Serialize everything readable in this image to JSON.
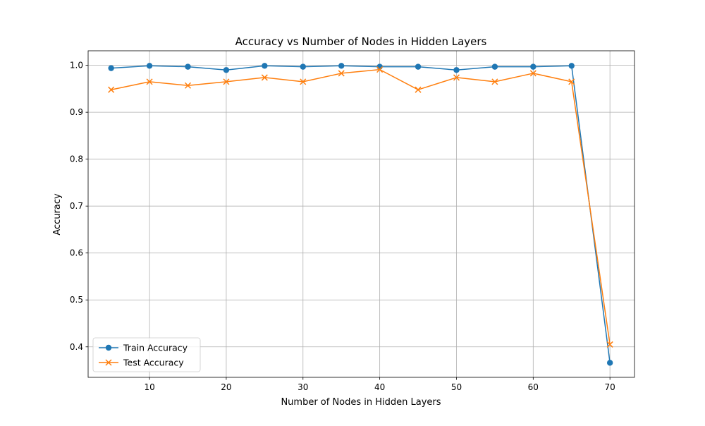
{
  "chart_data": {
    "type": "line",
    "title": "Accuracy vs Number of Nodes in Hidden Layers",
    "xlabel": "Number of Nodes in Hidden Layers",
    "ylabel": "Accuracy",
    "xlim": [
      2,
      73.2
    ],
    "ylim": [
      0.335,
      1.031
    ],
    "xticks": [
      10,
      20,
      30,
      40,
      50,
      60,
      70
    ],
    "yticks": [
      0.4,
      0.5,
      0.6,
      0.7,
      0.8,
      0.9,
      1.0
    ],
    "grid": true,
    "legend_position": "lower-left",
    "x": [
      5,
      10,
      15,
      20,
      25,
      30,
      35,
      40,
      45,
      50,
      55,
      60,
      65,
      70
    ],
    "series": [
      {
        "name": "Train Accuracy",
        "color": "#1f77b4",
        "marker": "circle",
        "values": [
          0.994,
          0.999,
          0.997,
          0.99,
          0.999,
          0.997,
          0.999,
          0.997,
          0.997,
          0.99,
          0.997,
          0.997,
          0.999,
          0.366
        ]
      },
      {
        "name": "Test Accuracy",
        "color": "#ff7f0e",
        "marker": "x",
        "values": [
          0.948,
          0.965,
          0.957,
          0.965,
          0.974,
          0.965,
          0.983,
          0.991,
          0.948,
          0.974,
          0.965,
          0.983,
          0.965,
          0.405
        ]
      }
    ]
  }
}
